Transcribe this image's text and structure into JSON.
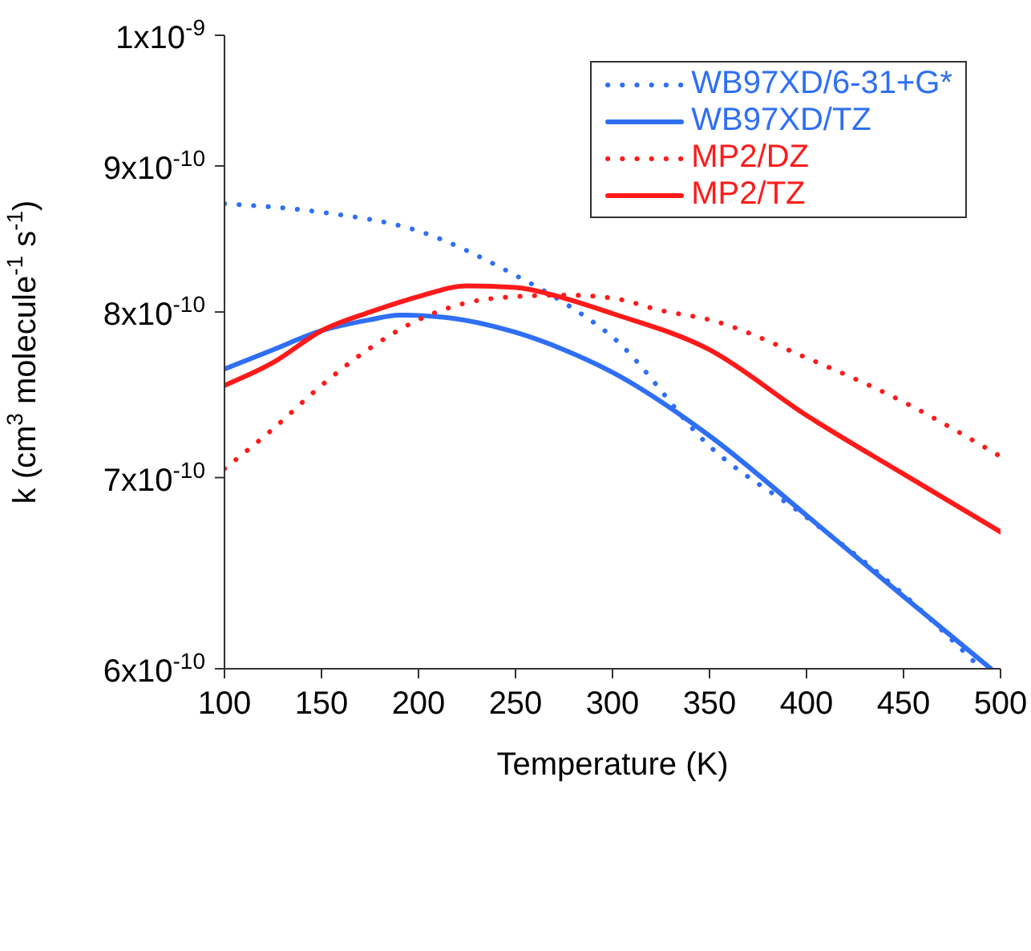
{
  "chart_data": {
    "type": "line",
    "xlabel": "Temperature (K)",
    "ylabel": "k (cm$^{3}$ molecule$^{-1}$ s$^{-1}$)",
    "log": "y",
    "grid": false,
    "legend": "top right",
    "xlim": [
      100,
      500
    ],
    "xticks": [
      100,
      150,
      200,
      250,
      300,
      350,
      400,
      450,
      500
    ],
    "ylim": [
      6e-10,
      1e-09
    ],
    "yticks": [
      {
        "value": 6e-10,
        "label": "6x10$^{-10}$"
      },
      {
        "value": 7e-10,
        "label": "7x10$^{-10}$"
      },
      {
        "value": 8e-10,
        "label": "8x10$^{-10}$"
      },
      {
        "value": 9e-10,
        "label": "9x10$^{-10}$"
      },
      {
        "value": 1e-09,
        "label": "1x10$^{-9}$"
      }
    ],
    "series": [
      {
        "name": "WB97XD/6-31+G*",
        "color": "#2f6ff5",
        "line_style": "dotted",
        "x": [
          100,
          150,
          200,
          250,
          275,
          300,
          350,
          400,
          450,
          490
        ],
        "values": [
          8.73e-10,
          8.67e-10,
          8.54e-10,
          8.24e-10,
          8.06e-10,
          7.84e-10,
          7.18e-10,
          6.78e-10,
          6.37e-10,
          6e-10
        ]
      },
      {
        "name": "WB97XD/TZ",
        "color": "#2f6ff5",
        "line_style": "solid",
        "x": [
          100,
          125,
          150,
          175,
          190,
          210,
          250,
          275,
          300,
          350,
          400,
          450,
          495
        ],
        "values": [
          7.64e-10,
          7.76e-10,
          7.88e-10,
          7.95e-10,
          7.98e-10,
          7.97e-10,
          7.87e-10,
          7.76e-10,
          7.62e-10,
          7.24e-10,
          6.79e-10,
          6.36e-10,
          6e-10
        ]
      },
      {
        "name": "MP2/DZ",
        "color": "#ff1a1a",
        "line_style": "dotted",
        "x": [
          100,
          125,
          150,
          175,
          200,
          225,
          250,
          275,
          300,
          325,
          350,
          400,
          450,
          500
        ],
        "values": [
          7.05e-10,
          7.28e-10,
          7.54e-10,
          7.77e-10,
          7.95e-10,
          8.06e-10,
          8.1e-10,
          8.11e-10,
          8.09e-10,
          8.01e-10,
          7.95e-10,
          7.71e-10,
          7.44e-10,
          7.12e-10
        ]
      },
      {
        "name": "MP2/TZ",
        "color": "#ff1a1a",
        "line_style": "solid",
        "x": [
          100,
          125,
          150,
          175,
          200,
          225,
          250,
          275,
          300,
          350,
          400,
          450,
          500
        ],
        "values": [
          7.54e-10,
          7.68e-10,
          7.88e-10,
          8e-10,
          8.1e-10,
          8.17e-10,
          8.16e-10,
          8.09e-10,
          7.99e-10,
          7.76e-10,
          7.36e-10,
          7.02e-10,
          6.7e-10
        ]
      }
    ]
  }
}
